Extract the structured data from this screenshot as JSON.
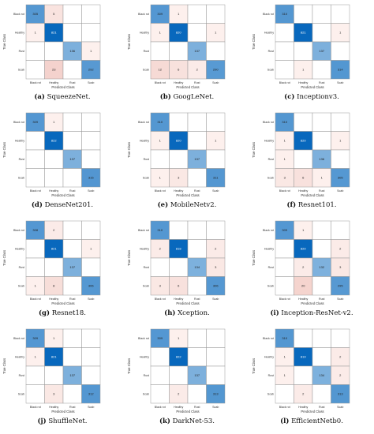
{
  "classes": [
    "Black rot",
    "Healthy",
    "Rust",
    "Scab"
  ],
  "xlabel": "Predicted Class",
  "ylabel": "True Class",
  "chart_data": [
    {
      "type": "heatmap",
      "letter": "(a)",
      "name": "SqueezeNet.",
      "matrix": [
        [
          305,
          5,
          null,
          null
        ],
        [
          1,
          821,
          null,
          null
        ],
        [
          null,
          null,
          136,
          1
        ],
        [
          null,
          23,
          null,
          292
        ]
      ]
    },
    {
      "type": "heatmap",
      "letter": "(b)",
      "name": "GoogLeNet.",
      "matrix": [
        [
          309,
          1,
          null,
          null
        ],
        [
          1,
          820,
          null,
          1
        ],
        [
          null,
          null,
          137,
          null
        ],
        [
          12,
          6,
          2,
          290
        ]
      ]
    },
    {
      "type": "heatmap",
      "letter": "(c)",
      "name": "Inceptionv3.",
      "matrix": [
        [
          310,
          null,
          null,
          null
        ],
        [
          null,
          821,
          null,
          1
        ],
        [
          null,
          null,
          137,
          null
        ],
        [
          null,
          1,
          null,
          314
        ]
      ]
    },
    {
      "type": "heatmap",
      "letter": "(d)",
      "name": "DenseNet201.",
      "matrix": [
        [
          309,
          1,
          null,
          null
        ],
        [
          null,
          822,
          null,
          null
        ],
        [
          null,
          null,
          137,
          null
        ],
        [
          null,
          null,
          null,
          315
        ]
      ]
    },
    {
      "type": "heatmap",
      "letter": "(e)",
      "name": "MobileNetv2.",
      "matrix": [
        [
          310,
          null,
          null,
          null
        ],
        [
          1,
          820,
          null,
          1
        ],
        [
          null,
          null,
          137,
          null
        ],
        [
          1,
          3,
          null,
          311
        ]
      ]
    },
    {
      "type": "heatmap",
      "letter": "(f)",
      "name": "Resnet101.",
      "matrix": [
        [
          310,
          null,
          null,
          null
        ],
        [
          1,
          820,
          null,
          1
        ],
        [
          1,
          null,
          136,
          null
        ],
        [
          3,
          6,
          1,
          305
        ]
      ]
    },
    {
      "type": "heatmap",
      "letter": "(g)",
      "name": "Resnet18.",
      "matrix": [
        [
          308,
          2,
          null,
          null
        ],
        [
          null,
          821,
          null,
          1
        ],
        [
          null,
          null,
          137,
          null
        ],
        [
          1,
          8,
          null,
          306
        ]
      ]
    },
    {
      "type": "heatmap",
      "letter": "(h)",
      "name": "Xception.",
      "matrix": [
        [
          310,
          null,
          null,
          null
        ],
        [
          2,
          818,
          null,
          2
        ],
        [
          null,
          null,
          134,
          3
        ],
        [
          3,
          6,
          null,
          306
        ]
      ]
    },
    {
      "type": "heatmap",
      "letter": "(i)",
      "name": "Inception-ResNet-v2.",
      "matrix": [
        [
          309,
          1,
          null,
          null
        ],
        [
          null,
          820,
          null,
          2
        ],
        [
          null,
          2,
          132,
          3
        ],
        [
          null,
          20,
          null,
          295
        ]
      ]
    },
    {
      "type": "heatmap",
      "letter": "(j)",
      "name": "ShuffleNet.",
      "matrix": [
        [
          309,
          1,
          null,
          null
        ],
        [
          1,
          821,
          null,
          null
        ],
        [
          null,
          null,
          137,
          null
        ],
        [
          null,
          3,
          null,
          312
        ]
      ]
    },
    {
      "type": "heatmap",
      "letter": "(k)",
      "name": "DarkNet-53.",
      "matrix": [
        [
          309,
          1,
          null,
          null
        ],
        [
          null,
          822,
          null,
          null
        ],
        [
          null,
          null,
          137,
          null
        ],
        [
          null,
          2,
          null,
          313
        ]
      ]
    },
    {
      "type": "heatmap",
      "letter": "(l)",
      "name": "EfficientNetb0.",
      "matrix": [
        [
          310,
          null,
          null,
          null
        ],
        [
          1,
          819,
          null,
          2
        ],
        [
          1,
          null,
          134,
          2
        ],
        [
          null,
          2,
          null,
          313
        ]
      ]
    }
  ]
}
